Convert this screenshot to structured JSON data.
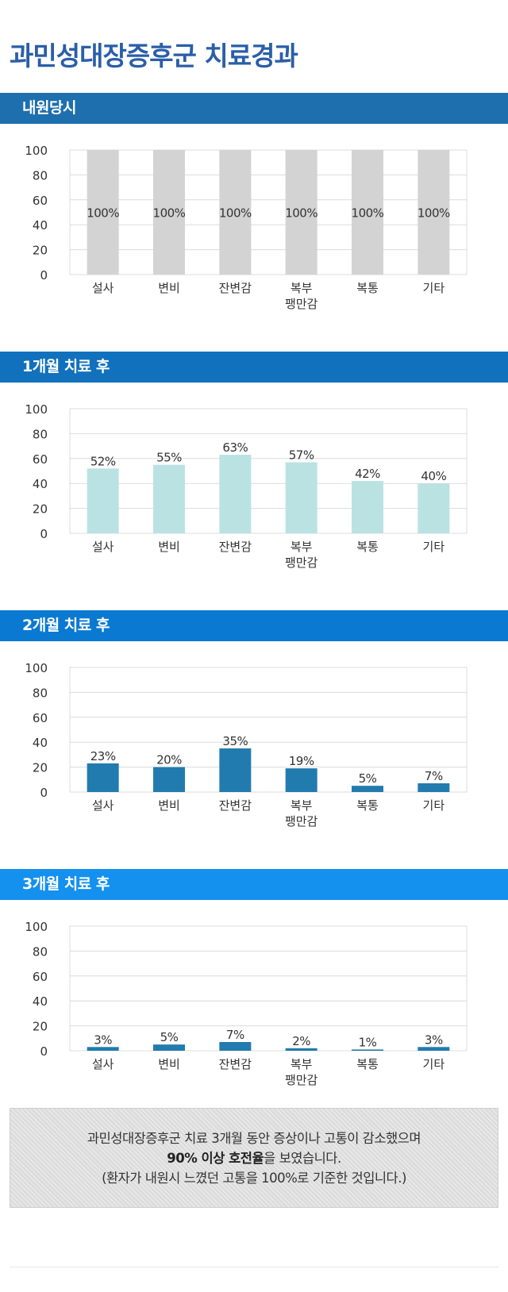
{
  "page_title": "과민성대장증후군 치료경과",
  "colors": {
    "title": "#2a5ea8",
    "grid": "#dcdcdc",
    "axis_text": "#333333"
  },
  "sections": [
    {
      "header": "내원당시",
      "header_color": "#1e6fae",
      "bar_color": "#d3d3d3"
    },
    {
      "header": "1개월 치료 후",
      "header_color": "#1271bd",
      "bar_color": "#bbe2e3"
    },
    {
      "header": "2개월 치료 후",
      "header_color": "#0a79d1",
      "bar_color": "#227bae"
    },
    {
      "header": "3개월 치료 후",
      "header_color": "#1490ee",
      "bar_color": "#227bae"
    }
  ],
  "chart_data": [
    {
      "type": "bar",
      "categories": [
        [
          "설사"
        ],
        [
          "변비"
        ],
        [
          "잔변감"
        ],
        [
          "복부",
          "팽만감"
        ],
        [
          "복통"
        ],
        [
          "기타"
        ]
      ],
      "values": [
        100,
        100,
        100,
        100,
        100,
        100
      ],
      "labels": [
        "100%",
        "100%",
        "100%",
        "100%",
        "100%",
        "100%"
      ],
      "yticks": [
        "0",
        "20",
        "40",
        "60",
        "80",
        "100"
      ],
      "ylim": [
        0,
        100
      ],
      "grid": true,
      "label_position": "inside-middle"
    },
    {
      "type": "bar",
      "categories": [
        [
          "설사"
        ],
        [
          "변비"
        ],
        [
          "잔변감"
        ],
        [
          "복부",
          "팽만감"
        ],
        [
          "복통"
        ],
        [
          "기타"
        ]
      ],
      "values": [
        52,
        55,
        63,
        57,
        42,
        40
      ],
      "labels": [
        "52%",
        "55%",
        "63%",
        "57%",
        "42%",
        "40%"
      ],
      "yticks": [
        "0",
        "20",
        "40",
        "60",
        "80",
        "100"
      ],
      "ylim": [
        0,
        100
      ],
      "grid": true,
      "label_position": "above"
    },
    {
      "type": "bar",
      "categories": [
        [
          "설사"
        ],
        [
          "변비"
        ],
        [
          "잔변감"
        ],
        [
          "복부",
          "팽만감"
        ],
        [
          "복통"
        ],
        [
          "기타"
        ]
      ],
      "values": [
        23,
        20,
        35,
        19,
        5,
        7
      ],
      "labels": [
        "23%",
        "20%",
        "35%",
        "19%",
        "5%",
        "7%"
      ],
      "yticks": [
        "0",
        "20",
        "40",
        "60",
        "80",
        "100"
      ],
      "ylim": [
        0,
        100
      ],
      "grid": true,
      "label_position": "above"
    },
    {
      "type": "bar",
      "categories": [
        [
          "설사"
        ],
        [
          "변비"
        ],
        [
          "잔변감"
        ],
        [
          "복부",
          "팽만감"
        ],
        [
          "복통"
        ],
        [
          "기타"
        ]
      ],
      "values": [
        3,
        5,
        7,
        2,
        1,
        3
      ],
      "labels": [
        "3%",
        "5%",
        "7%",
        "2%",
        "1%",
        "3%"
      ],
      "yticks": [
        "0",
        "20",
        "40",
        "60",
        "80",
        "100"
      ],
      "ylim": [
        0,
        100
      ],
      "grid": true,
      "label_position": "above"
    }
  ],
  "summary": {
    "line1": "과민성대장증후군 치료 3개월 동안 증상이나 고통이 감소했으며",
    "line2_bold": "90% 이상 호전율",
    "line2_rest": "을 보였습니다.",
    "line3": "(환자가 내원시 느꼈던 고통을 100%로 기준한 것입니다.)"
  }
}
